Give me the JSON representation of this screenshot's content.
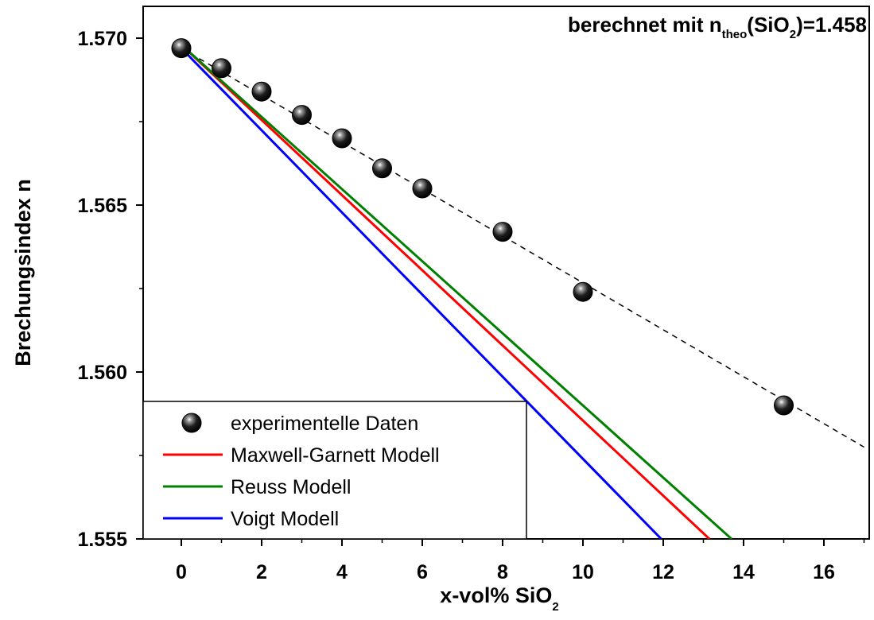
{
  "chart_data": {
    "type": "line",
    "xlabel": "x-vol% SiO",
    "xlabel_subscript": "2",
    "ylabel": "Brechungsindex n",
    "xlim": [
      -1,
      17
    ],
    "ylim": [
      1.555,
      1.571
    ],
    "x_ticks": [
      0,
      2,
      4,
      6,
      8,
      10,
      12,
      14,
      16
    ],
    "x_tick_labels": [
      "0",
      "2",
      "4",
      "6",
      "8",
      "10",
      "12",
      "14",
      "16"
    ],
    "y_ticks": [
      1.555,
      1.56,
      1.565,
      1.57
    ],
    "y_tick_labels": [
      "1.555",
      "1.560",
      "1.565",
      "1.570"
    ],
    "grid": false,
    "legend_position": "bottom-left",
    "annotation": {
      "prefix": "berechnet mit n",
      "sub1": "theo",
      "middle": "(SiO",
      "sub2": "2",
      "suffix": ")=1.458"
    },
    "series": [
      {
        "name": "experimentelle Daten",
        "kind": "scatter",
        "color": "#000000",
        "x": [
          0,
          1,
          2,
          3,
          4,
          5,
          6,
          8,
          10,
          15
        ],
        "y": [
          1.5697,
          1.5691,
          1.5684,
          1.5677,
          1.567,
          1.5661,
          1.5655,
          1.5642,
          1.5624,
          1.559
        ]
      },
      {
        "name": "",
        "kind": "fit-line",
        "style": "dashed",
        "color": "#000000",
        "x": [
          0,
          17
        ],
        "y": [
          1.5697,
          1.55775
        ]
      },
      {
        "name": "Maxwell-Garnett Modell",
        "kind": "line",
        "color": "#ff0000",
        "x": [
          0,
          13.15
        ],
        "y": [
          1.5698,
          1.555
        ]
      },
      {
        "name": "Reuss Modell",
        "kind": "line",
        "color": "#008000",
        "x": [
          0,
          13.7
        ],
        "y": [
          1.5698,
          1.555
        ]
      },
      {
        "name": "Voigt Modell",
        "kind": "line",
        "color": "#0000ff",
        "x": [
          0,
          11.95
        ],
        "y": [
          1.5697,
          1.555
        ]
      }
    ]
  }
}
